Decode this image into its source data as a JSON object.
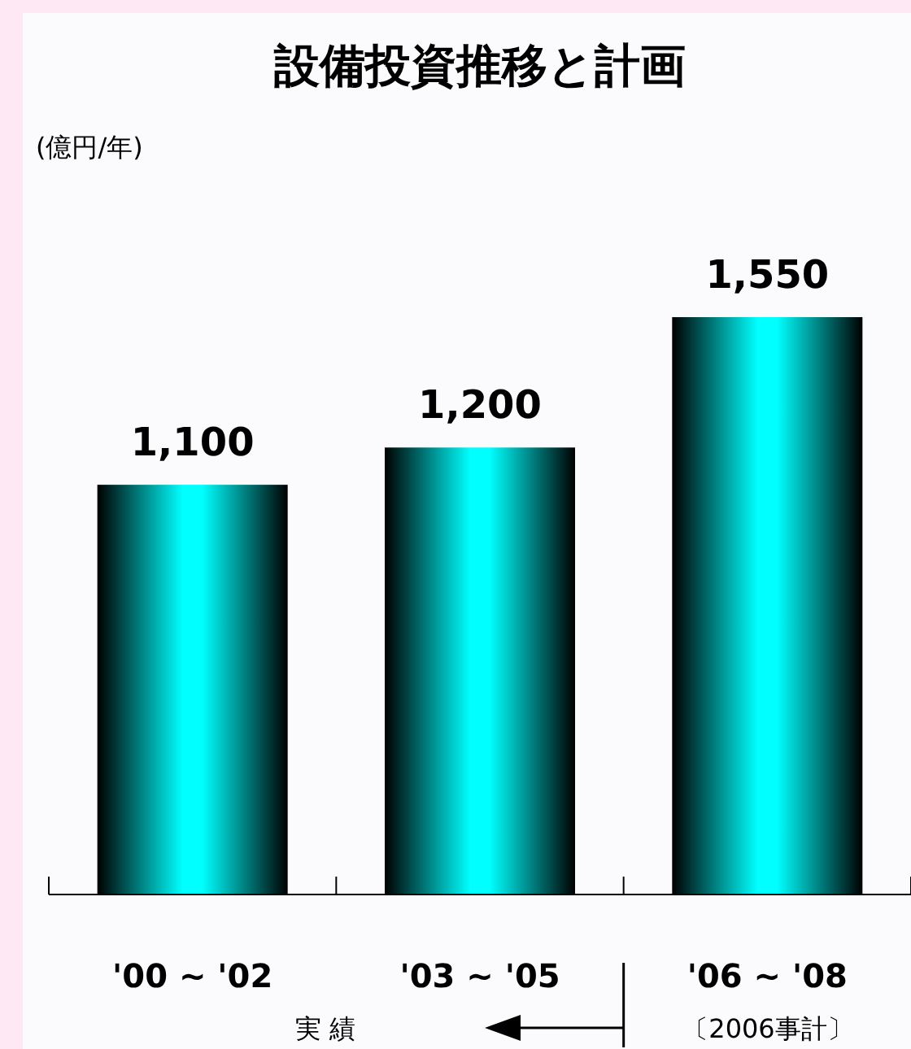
{
  "chart_data": {
    "type": "bar",
    "title": "設備投資推移と計画",
    "categories": [
      "'00 ~ '02",
      "'03 ~ '05",
      "'06 ~ '08"
    ],
    "values": [
      1100,
      1200,
      1550
    ],
    "color": "#00ffff",
    "value_labels": [
      "1,100",
      "1,200",
      "1,550"
    ],
    "annotations": [
      "(億円/年)",
      "実 績",
      "〔2006事計〕"
    ]
  }
}
